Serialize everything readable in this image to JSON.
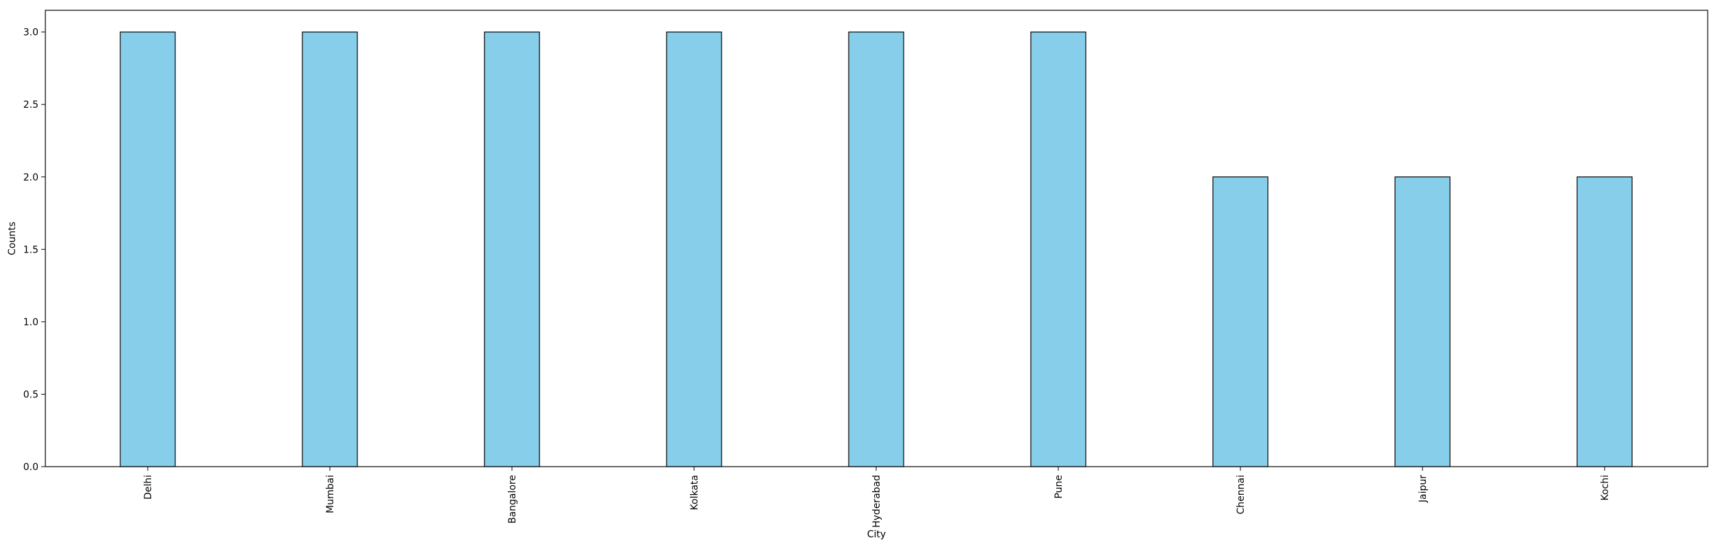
{
  "chart_data": {
    "type": "bar",
    "categories": [
      "Delhi",
      "Mumbai",
      "Bangalore",
      "Kolkata",
      "Hyderabad",
      "Pune",
      "Chennai",
      "Jaipur",
      "Kochi"
    ],
    "values": [
      3,
      3,
      3,
      3,
      3,
      3,
      2,
      2,
      2
    ],
    "title": "",
    "xlabel": "City",
    "ylabel": "Counts",
    "ylim": [
      0,
      3.15
    ],
    "yticks": [
      "0.0",
      "0.5",
      "1.0",
      "1.5",
      "2.0",
      "2.5",
      "3.0"
    ],
    "grid": false,
    "bar_color": "#87CEEB",
    "bar_edge_color": "#000000"
  }
}
